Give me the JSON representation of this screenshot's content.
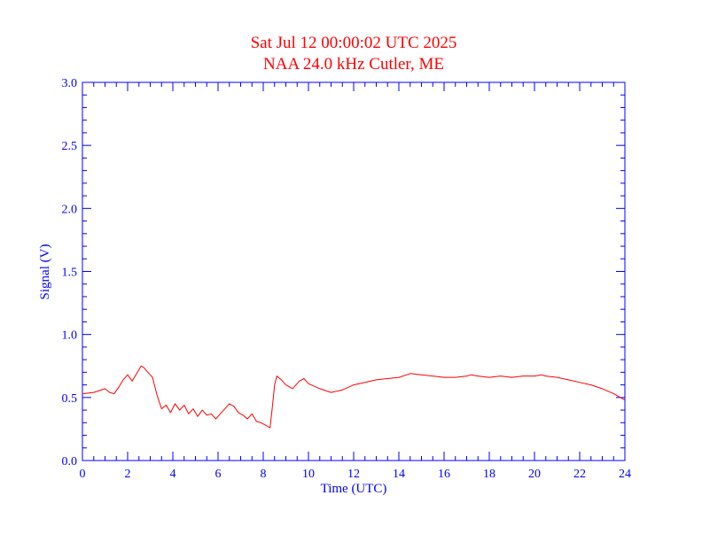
{
  "colors": {
    "axis": "#0000ff",
    "data": "#ff0000",
    "title": "#ff0000",
    "background": "#ffffff"
  },
  "chart_data": {
    "type": "line",
    "title": "Sat Jul 12 00:00:02 UTC 2025",
    "subtitle": "NAA 24.0 kHz Cutler, ME",
    "xlabel": "Time (UTC)",
    "ylabel": "Signal (V)",
    "xlim": [
      0,
      24
    ],
    "ylim": [
      0,
      3.0
    ],
    "x_ticks": [
      "0",
      "2",
      "4",
      "6",
      "8",
      "10",
      "12",
      "14",
      "16",
      "18",
      "20",
      "22",
      "24"
    ],
    "y_ticks": [
      "0.0",
      "0.5",
      "1.0",
      "1.5",
      "2.0",
      "2.5",
      "3.0"
    ],
    "grid": false,
    "series": [
      {
        "x": [
          0,
          0.5,
          1.0,
          1.2,
          1.4,
          1.6,
          1.8,
          2.0,
          2.2,
          2.4,
          2.6,
          2.7,
          2.9,
          3.1,
          3.3,
          3.5,
          3.7,
          3.9,
          4.1,
          4.3,
          4.5,
          4.7,
          4.9,
          5.1,
          5.3,
          5.5,
          5.7,
          5.9,
          6.1,
          6.3,
          6.5,
          6.7,
          6.9,
          7.1,
          7.3,
          7.5,
          7.7,
          7.9,
          8.1,
          8.3,
          8.4,
          8.5,
          8.6,
          8.8,
          9.0,
          9.3,
          9.6,
          9.8,
          10.0,
          10.5,
          11.0,
          11.5,
          12.0,
          12.5,
          13.0,
          13.5,
          14.0,
          14.5,
          15.0,
          15.5,
          16.0,
          16.5,
          17.0,
          17.2,
          17.5,
          18.0,
          18.5,
          19.0,
          19.5,
          20.0,
          20.3,
          20.5,
          21.0,
          21.5,
          22.0,
          22.5,
          23.0,
          23.5,
          24.0
        ],
        "y": [
          0.53,
          0.54,
          0.57,
          0.54,
          0.53,
          0.58,
          0.64,
          0.68,
          0.63,
          0.69,
          0.75,
          0.74,
          0.7,
          0.66,
          0.52,
          0.41,
          0.44,
          0.38,
          0.45,
          0.4,
          0.44,
          0.37,
          0.41,
          0.35,
          0.4,
          0.36,
          0.37,
          0.33,
          0.37,
          0.41,
          0.45,
          0.43,
          0.38,
          0.36,
          0.33,
          0.37,
          0.31,
          0.3,
          0.28,
          0.26,
          0.42,
          0.6,
          0.67,
          0.64,
          0.6,
          0.57,
          0.63,
          0.65,
          0.61,
          0.57,
          0.54,
          0.56,
          0.6,
          0.62,
          0.64,
          0.65,
          0.66,
          0.69,
          0.68,
          0.67,
          0.66,
          0.66,
          0.67,
          0.68,
          0.67,
          0.66,
          0.67,
          0.66,
          0.67,
          0.67,
          0.68,
          0.67,
          0.66,
          0.64,
          0.62,
          0.6,
          0.57,
          0.53,
          0.48
        ]
      }
    ]
  }
}
